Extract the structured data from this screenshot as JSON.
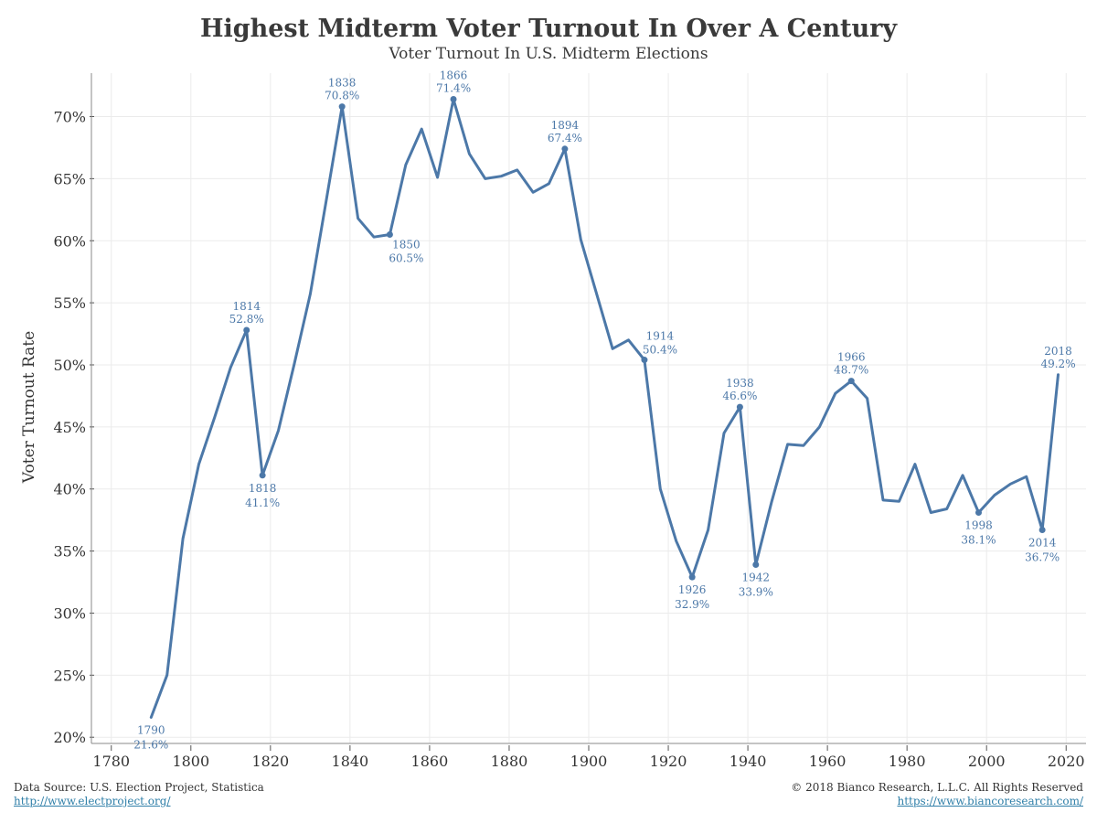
{
  "header": {
    "title": "Highest Midterm Voter Turnout In Over A Century",
    "subtitle": "Voter Turnout In U.S. Midterm Elections"
  },
  "footer": {
    "source_text": "Data Source: U.S. Election Project, Statistica",
    "source_link": "http://www.electproject.org/",
    "copyright": "© 2018 Bianco Research, L.L.C. All Rights Reserved",
    "site_link": "https://www.biancoresearch.com/"
  },
  "colors": {
    "line": "#4c78a8",
    "grid": "#ebebeb",
    "text": "#333333",
    "link": "#2f7fa8"
  },
  "chart_data": {
    "type": "line",
    "title": "Highest Midterm Voter Turnout In Over A Century",
    "subtitle": "Voter Turnout In U.S. Midterm Elections",
    "xlabel": "",
    "ylabel": "Voter Turnout Rate",
    "xlim": [
      1775,
      2025
    ],
    "ylim": [
      19.5,
      73.5
    ],
    "x_ticks": [
      1780,
      1800,
      1820,
      1840,
      1860,
      1880,
      1900,
      1920,
      1940,
      1960,
      1980,
      2000,
      2020
    ],
    "x_tick_labels": [
      "1780",
      "1800",
      "1820",
      "1840",
      "1860",
      "1880",
      "1900",
      "1920",
      "1940",
      "1960",
      "1980",
      "2000",
      "2020"
    ],
    "y_ticks": [
      20,
      25,
      30,
      35,
      40,
      45,
      50,
      55,
      60,
      65,
      70
    ],
    "y_tick_labels": [
      "20%",
      "25%",
      "30%",
      "35%",
      "40%",
      "45%",
      "50%",
      "55%",
      "60%",
      "65%",
      "70%"
    ],
    "grid": true,
    "series": [
      {
        "x": [
          1790,
          1794,
          1798,
          1802,
          1806,
          1810,
          1814,
          1818,
          1822,
          1826,
          1830,
          1834,
          1838,
          1842,
          1846,
          1850,
          1854,
          1858,
          1862,
          1866,
          1870,
          1874,
          1878,
          1882,
          1886,
          1890,
          1894,
          1898,
          1902,
          1906,
          1910,
          1914,
          1918,
          1922,
          1926,
          1930,
          1934,
          1938,
          1942,
          1946,
          1950,
          1954,
          1958,
          1962,
          1966,
          1970,
          1974,
          1978,
          1982,
          1986,
          1990,
          1994,
          1998,
          2002,
          2006,
          2010,
          2014,
          2018
        ],
        "y": [
          21.6,
          25.0,
          36.0,
          42.0,
          45.8,
          49.8,
          52.8,
          41.1,
          44.7,
          50.1,
          55.7,
          63.2,
          70.8,
          61.8,
          60.3,
          60.5,
          66.1,
          69.0,
          65.1,
          71.4,
          67.0,
          65.0,
          65.2,
          65.7,
          63.9,
          64.6,
          67.4,
          60.1,
          55.7,
          51.3,
          52.0,
          50.4,
          40.0,
          35.8,
          32.9,
          36.7,
          44.5,
          46.6,
          33.9,
          39.0,
          43.6,
          43.5,
          45.0,
          47.7,
          48.7,
          47.3,
          39.1,
          39.0,
          42.0,
          38.1,
          38.4,
          41.1,
          38.1,
          39.5,
          40.4,
          41.0,
          36.7,
          49.2
        ]
      }
    ],
    "annotations": [
      {
        "x": 1790,
        "y": 21.6,
        "year": "1790",
        "value": "21.6%",
        "pos": "below",
        "marker": false
      },
      {
        "x": 1814,
        "y": 52.8,
        "year": "1814",
        "value": "52.8%",
        "pos": "above",
        "marker": true
      },
      {
        "x": 1818,
        "y": 41.1,
        "year": "1818",
        "value": "41.1%",
        "pos": "below",
        "marker": true
      },
      {
        "x": 1838,
        "y": 70.8,
        "year": "1838",
        "value": "70.8%",
        "pos": "above",
        "marker": true
      },
      {
        "x": 1850,
        "y": 60.5,
        "year": "1850",
        "value": "60.5%",
        "pos": "below-right",
        "marker": true
      },
      {
        "x": 1866,
        "y": 71.4,
        "year": "1866",
        "value": "71.4%",
        "pos": "above",
        "marker": true
      },
      {
        "x": 1894,
        "y": 67.4,
        "year": "1894",
        "value": "67.4%",
        "pos": "above",
        "marker": true
      },
      {
        "x": 1914,
        "y": 50.4,
        "year": "1914",
        "value": "50.4%",
        "pos": "above-right",
        "marker": true
      },
      {
        "x": 1926,
        "y": 32.9,
        "year": "1926",
        "value": "32.9%",
        "pos": "below",
        "marker": true
      },
      {
        "x": 1938,
        "y": 46.6,
        "year": "1938",
        "value": "46.6%",
        "pos": "above",
        "marker": true
      },
      {
        "x": 1942,
        "y": 33.9,
        "year": "1942",
        "value": "33.9%",
        "pos": "below",
        "marker": true
      },
      {
        "x": 1966,
        "y": 48.7,
        "year": "1966",
        "value": "48.7%",
        "pos": "above",
        "marker": true
      },
      {
        "x": 1998,
        "y": 38.1,
        "year": "1998",
        "value": "38.1%",
        "pos": "below",
        "marker": true
      },
      {
        "x": 2014,
        "y": 36.7,
        "year": "2014",
        "value": "36.7%",
        "pos": "below",
        "marker": true
      },
      {
        "x": 2018,
        "y": 49.2,
        "year": "2018",
        "value": "49.2%",
        "pos": "above",
        "marker": false
      }
    ]
  }
}
